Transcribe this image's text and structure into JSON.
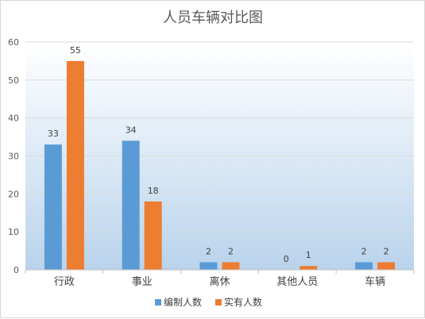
{
  "chart_data": {
    "type": "bar",
    "title": "人员车辆对比图",
    "xlabel": "",
    "ylabel": "",
    "categories": [
      "行政",
      "事业",
      "离休",
      "其他人员",
      "车辆"
    ],
    "series": [
      {
        "name": "编制人数",
        "color": "#5b9bd5",
        "values": [
          33,
          34,
          2,
          0,
          2
        ]
      },
      {
        "name": "实有人数",
        "color": "#ed7d31",
        "values": [
          55,
          18,
          2,
          1,
          2
        ]
      }
    ],
    "ylim": [
      0,
      60
    ],
    "yticks": [
      0,
      10,
      20,
      30,
      40,
      50,
      60
    ],
    "grid": true,
    "legend_position": "bottom",
    "plot_background": "gradient-light-blue"
  }
}
